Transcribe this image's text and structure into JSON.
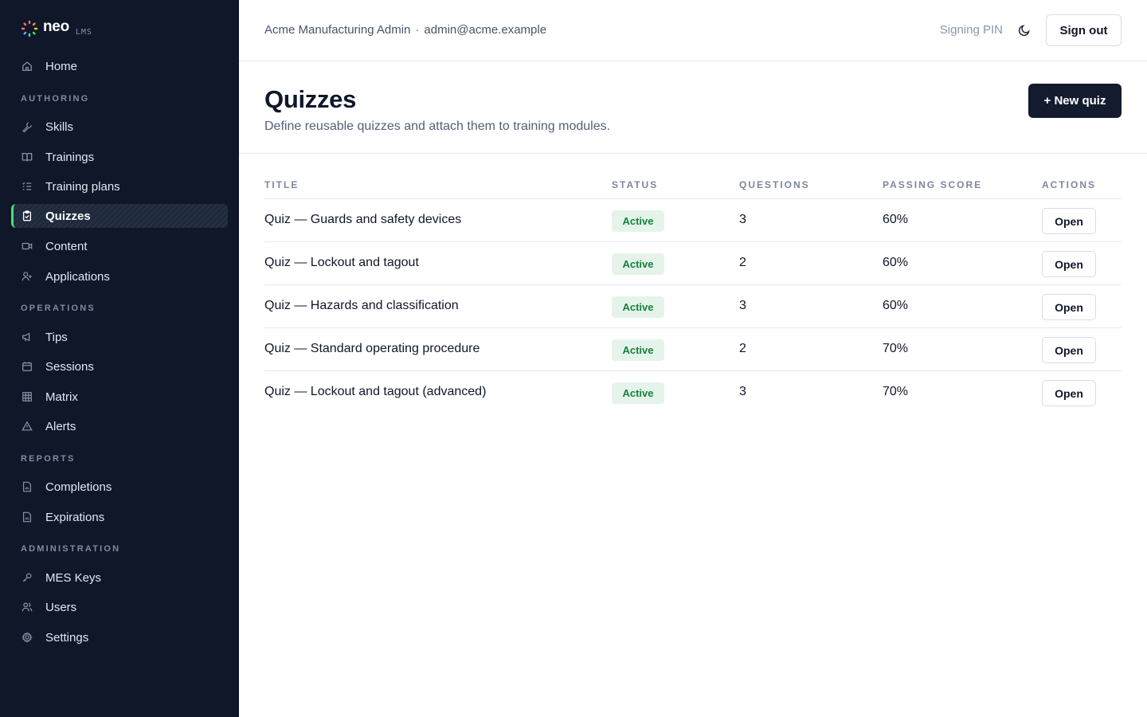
{
  "brand": {
    "name": "neo",
    "sub": "LMS"
  },
  "sidebar": {
    "home": {
      "label": "Home",
      "icon": "home-icon"
    },
    "sections": [
      {
        "title": "AUTHORING",
        "items": [
          {
            "label": "Skills",
            "icon": "wrench-icon"
          },
          {
            "label": "Trainings",
            "icon": "book-icon"
          },
          {
            "label": "Training plans",
            "icon": "list-icon"
          },
          {
            "label": "Quizzes",
            "icon": "clipboard-icon",
            "active": true
          },
          {
            "label": "Content",
            "icon": "video-icon"
          },
          {
            "label": "Applications",
            "icon": "user-plus-icon"
          }
        ]
      },
      {
        "title": "OPERATIONS",
        "items": [
          {
            "label": "Tips",
            "icon": "megaphone-icon"
          },
          {
            "label": "Sessions",
            "icon": "calendar-icon"
          },
          {
            "label": "Matrix",
            "icon": "grid-icon"
          },
          {
            "label": "Alerts",
            "icon": "warning-icon"
          }
        ]
      },
      {
        "title": "REPORTS",
        "items": [
          {
            "label": "Completions",
            "icon": "report-icon"
          },
          {
            "label": "Expirations",
            "icon": "report-icon"
          }
        ]
      },
      {
        "title": "ADMINISTRATION",
        "items": [
          {
            "label": "MES Keys",
            "icon": "key-icon"
          },
          {
            "label": "Users",
            "icon": "users-icon"
          },
          {
            "label": "Settings",
            "icon": "gear-icon"
          }
        ]
      }
    ]
  },
  "header": {
    "org": "Acme Manufacturing Admin",
    "separator": "·",
    "email": "admin@acme.example",
    "signing_pin": "Signing PIN",
    "sign_out": "Sign out"
  },
  "page": {
    "title": "Quizzes",
    "subtitle": "Define reusable quizzes and attach them to training modules.",
    "new_button": "+ New quiz"
  },
  "table": {
    "columns": [
      "TITLE",
      "STATUS",
      "QUESTIONS",
      "PASSING SCORE",
      "ACTIONS"
    ],
    "rows": [
      {
        "title": "Quiz — Guards and safety devices",
        "status": "Active",
        "questions": "3",
        "passing": "60%",
        "action": "Open"
      },
      {
        "title": "Quiz — Lockout and tagout",
        "status": "Active",
        "questions": "2",
        "passing": "60%",
        "action": "Open"
      },
      {
        "title": "Quiz — Hazards and classification",
        "status": "Active",
        "questions": "3",
        "passing": "60%",
        "action": "Open"
      },
      {
        "title": "Quiz — Standard operating procedure",
        "status": "Active",
        "questions": "2",
        "passing": "70%",
        "action": "Open"
      },
      {
        "title": "Quiz — Lockout and tagout (advanced)",
        "status": "Active",
        "questions": "3",
        "passing": "70%",
        "action": "Open"
      }
    ]
  },
  "colors": {
    "sidebar_bg": "#0f1729",
    "accent": "#4ade80",
    "primary_button": "#131c2e",
    "badge_bg": "#e5f4ea",
    "badge_text": "#15803d"
  }
}
